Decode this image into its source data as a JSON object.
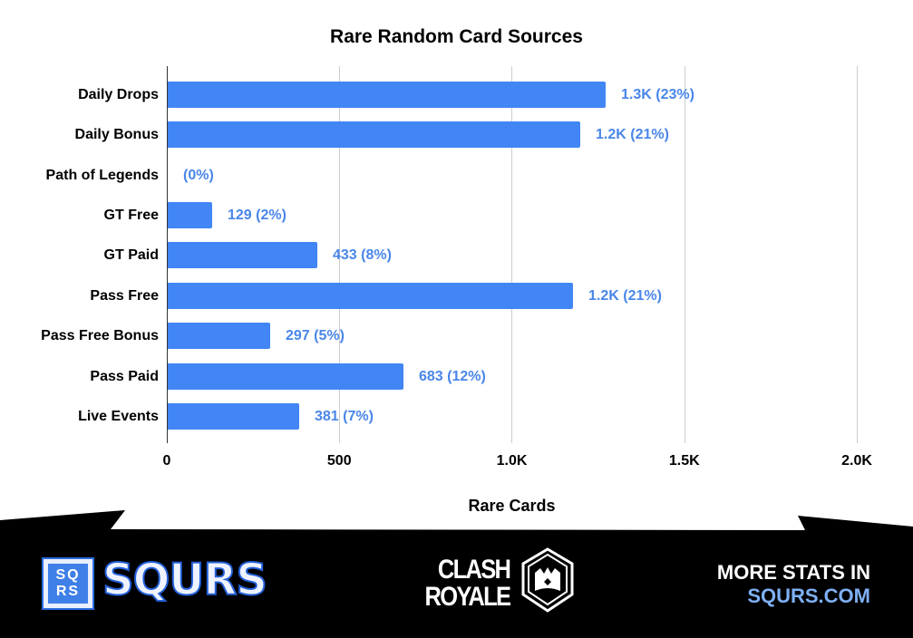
{
  "chart_data": {
    "type": "bar",
    "orientation": "horizontal",
    "title": "Rare Random Card Sources",
    "xlabel": "Rare Cards",
    "ylabel": "",
    "xlim": [
      0,
      2000
    ],
    "grid": true,
    "legend": "none",
    "x_ticks": [
      "0",
      "500",
      "1.0K",
      "1.5K",
      "2.0K"
    ],
    "x_tick_values": [
      0,
      500,
      1000,
      1500,
      2000
    ],
    "categories": [
      "Daily Drops",
      "Daily Bonus",
      "Path of Legends",
      "GT Free",
      "GT Paid",
      "Pass Free",
      "Pass Free Bonus",
      "Pass Paid",
      "Live Events"
    ],
    "values": [
      1270,
      1196,
      0,
      129,
      433,
      1175,
      297,
      683,
      381
    ],
    "data_labels": [
      "1.3K (23%)",
      "1.2K (21%)",
      "(0%)",
      "129 (2%)",
      "433 (8%)",
      "1.2K (21%)",
      "297 (5%)",
      "683 (12%)",
      "381 (7%)"
    ],
    "percentages": [
      23,
      21,
      0,
      2,
      8,
      21,
      5,
      12,
      7
    ],
    "bar_color": "#4285f4",
    "label_color": "#4a86e8"
  },
  "footer": {
    "brand_box": [
      "SQ",
      "RS"
    ],
    "brand_name": "SQURS",
    "game_logo_line1": "CLASH",
    "game_logo_line2": "ROYALE",
    "cta_line1": "MORE STATS IN",
    "cta_line2": "SQURS.COM",
    "background": "#000000",
    "accent": "#7fb0f5"
  }
}
